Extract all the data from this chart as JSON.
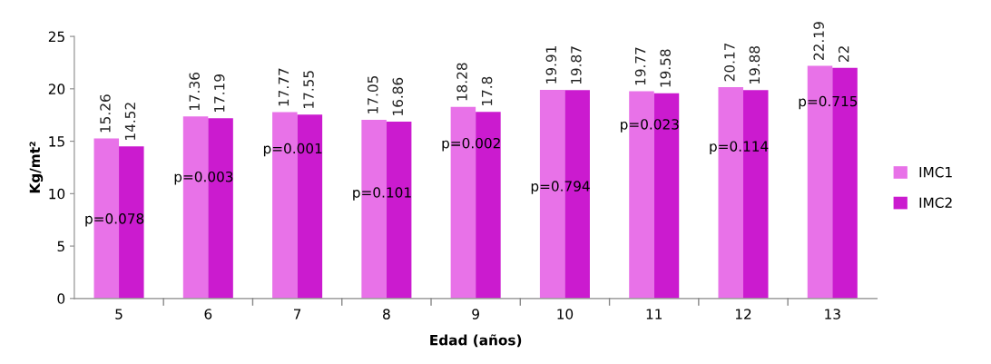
{
  "chart_data": {
    "type": "bar",
    "xlabel": "Edad (años)",
    "ylabel": "Kg/mt²",
    "categories": [
      "5",
      "6",
      "7",
      "8",
      "9",
      "10",
      "11",
      "12",
      "13"
    ],
    "series": [
      {
        "name": "IMC1",
        "color": "#e872e8",
        "values": [
          15.26,
          17.36,
          17.77,
          17.05,
          18.28,
          19.91,
          19.77,
          20.17,
          22.19
        ]
      },
      {
        "name": "IMC2",
        "color": "#cb1bcf",
        "values": [
          14.52,
          17.19,
          17.55,
          16.86,
          17.8,
          19.87,
          19.58,
          19.88,
          22
        ]
      }
    ],
    "ylim": [
      0,
      25
    ],
    "yticks": [
      0,
      5,
      10,
      15,
      20,
      25
    ],
    "grid": false,
    "legend": "right",
    "data_labels": true,
    "annotations": [
      {
        "text": "p=0.078",
        "x": "5",
        "y": 7.5
      },
      {
        "text": "p=0.003",
        "x": "6",
        "y": 11.5
      },
      {
        "text": "p=0.001",
        "x": "7",
        "y": 14.2
      },
      {
        "text": "p=0.101",
        "x": "8",
        "y": 10
      },
      {
        "text": "p=0.002",
        "x": "9",
        "y": 14.7
      },
      {
        "text": "p=0.794",
        "x": "10",
        "y": 10.6
      },
      {
        "text": "p=0.023",
        "x": "11",
        "y": 16.5
      },
      {
        "text": "p=0.114",
        "x": "12",
        "y": 14.4
      },
      {
        "text": "p=0.715",
        "x": "13",
        "y": 18.7
      }
    ]
  }
}
